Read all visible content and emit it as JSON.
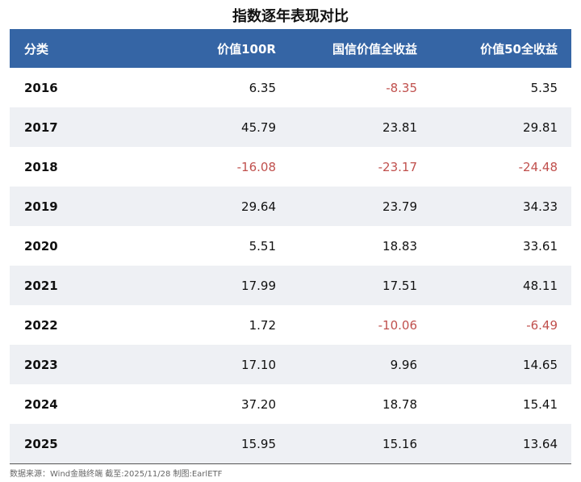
{
  "title": "指数逐年表现对比",
  "table": {
    "header": [
      "分类",
      "价值100R",
      "国信价值全收益",
      "价值50全收益"
    ],
    "rows": [
      [
        "2016",
        "6.35",
        "-8.35",
        "5.35"
      ],
      [
        "2017",
        "45.79",
        "23.81",
        "29.81"
      ],
      [
        "2018",
        "-16.08",
        "-23.17",
        "-24.48"
      ],
      [
        "2019",
        "29.64",
        "23.79",
        "34.33"
      ],
      [
        "2020",
        "5.51",
        "18.83",
        "33.61"
      ],
      [
        "2021",
        "17.99",
        "17.51",
        "48.11"
      ],
      [
        "2022",
        "1.72",
        "-10.06",
        "-6.49"
      ],
      [
        "2023",
        "17.10",
        "9.96",
        "14.65"
      ],
      [
        "2024",
        "37.20",
        "18.78",
        "15.41"
      ],
      [
        "2025",
        "15.95",
        "15.16",
        "13.64"
      ]
    ]
  },
  "footer": "数据来源：Wind金融终端 截至:2025/11/28 制图:EarlETF"
}
